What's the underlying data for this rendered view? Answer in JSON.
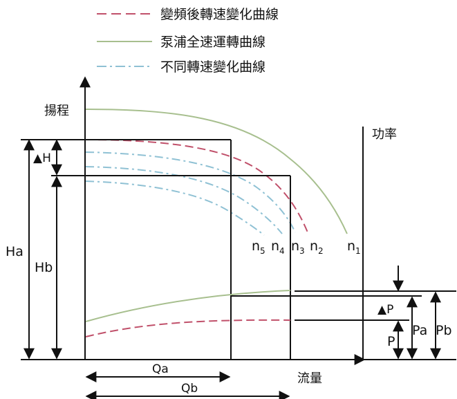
{
  "legend": {
    "items": [
      {
        "label": "變頻後轉速變化曲線",
        "color": "#c0506a",
        "style": "dashed"
      },
      {
        "label": "泵浦全速運轉曲線",
        "color": "#a7bf8e",
        "style": "solid"
      },
      {
        "label": "不同轉速變化曲線",
        "color": "#8fc1d4",
        "style": "dashdot"
      }
    ]
  },
  "axes": {
    "y_label": "揚程",
    "x_label": "流量",
    "power_label": "功率"
  },
  "dimensions": {
    "delta_h": "▲H",
    "ha": "Ha",
    "hb": "Hb",
    "qa": "Qa",
    "qb": "Qb",
    "delta_p": "▲P",
    "p": "P",
    "pa": "Pa",
    "pb": "Pb"
  },
  "curve_labels": {
    "n5": {
      "base": "n",
      "sub": "5"
    },
    "n4": {
      "base": "n",
      "sub": "4"
    },
    "n3": {
      "base": "n",
      "sub": "3"
    },
    "n2": {
      "base": "n",
      "sub": "2"
    },
    "n1": {
      "base": "n",
      "sub": "1"
    }
  },
  "colors": {
    "full_speed": "#a7bf8e",
    "vfd": "#c0506a",
    "speed_variants": "#8fc1d4",
    "lines": "#111111"
  }
}
